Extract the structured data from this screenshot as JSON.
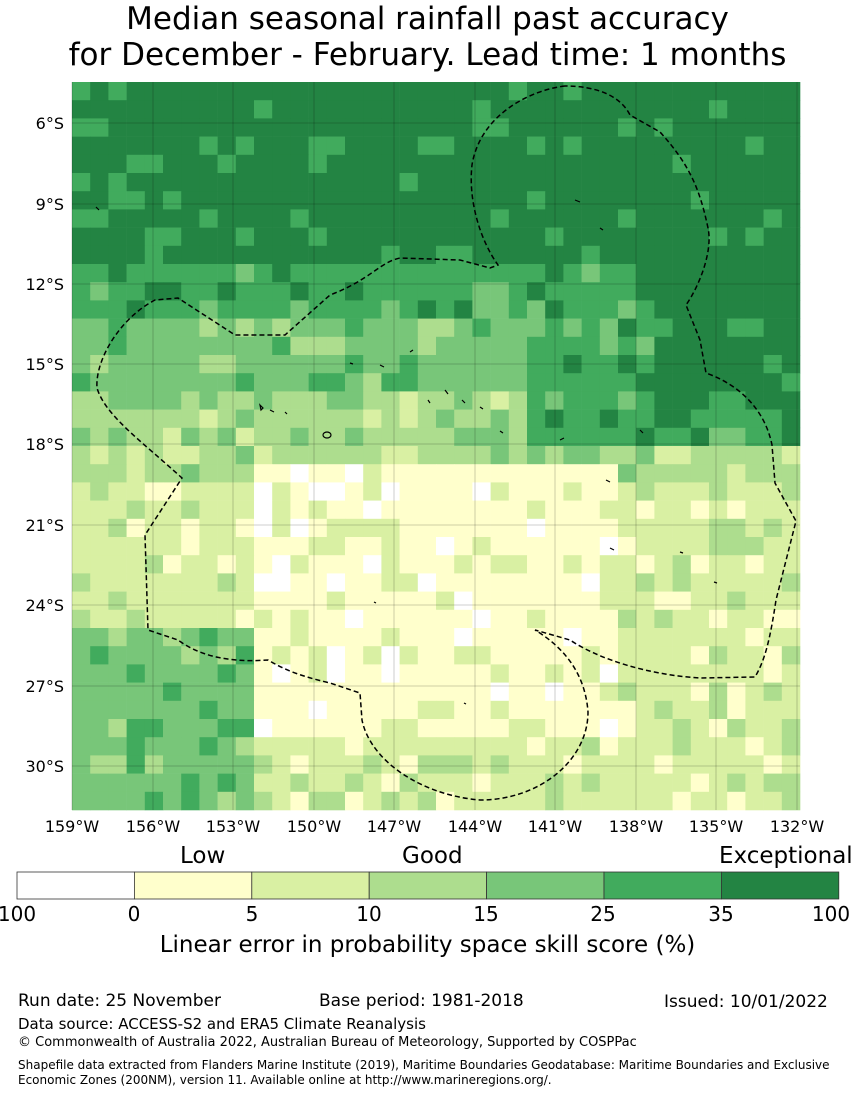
{
  "title_line1": "Median seasonal rainfall past accuracy",
  "title_line2": "for December - February. Lead time: 1 months",
  "map": {
    "lat_labels": [
      "6°S",
      "9°S",
      "12°S",
      "15°S",
      "18°S",
      "21°S",
      "24°S",
      "27°S",
      "30°S"
    ],
    "lon_labels": [
      "159°W",
      "156°W",
      "153°W",
      "150°W",
      "147°W",
      "144°W",
      "141°W",
      "138°W",
      "135°W",
      "132°W"
    ]
  },
  "legend": {
    "categories": [
      "Low",
      "Good",
      "Exceptional"
    ],
    "ticks": [
      "100",
      "0",
      "5",
      "10",
      "15",
      "25",
      "35",
      "100"
    ],
    "colors": [
      "#ffffff",
      "#ffffcc",
      "#d9f0a3",
      "#addd8e",
      "#78c679",
      "#41ab5d",
      "#238443"
    ],
    "label": "Linear error in probability space skill score (%)"
  },
  "footer": {
    "run_date": "Run date: 25 November",
    "base_period": "Base period: 1981-2018",
    "issued": "Issued: 10/01/2022",
    "data_source": "Data source: ACCESS-S2 and ERA5 Climate Reanalysis",
    "copyright": "© Commonwealth of Australia 2022, Australian Bureau of Meteorology, Supported by COSPPac",
    "shapefile_line1": "Shapefile data extracted from Flanders Marine Institute (2019), Maritime Boundaries Geodatabase: Maritime Boundaries and Exclusive",
    "shapefile_line2": "Economic Zones (200NM), version 11. Available online at http://www.marineregions.org/."
  }
}
